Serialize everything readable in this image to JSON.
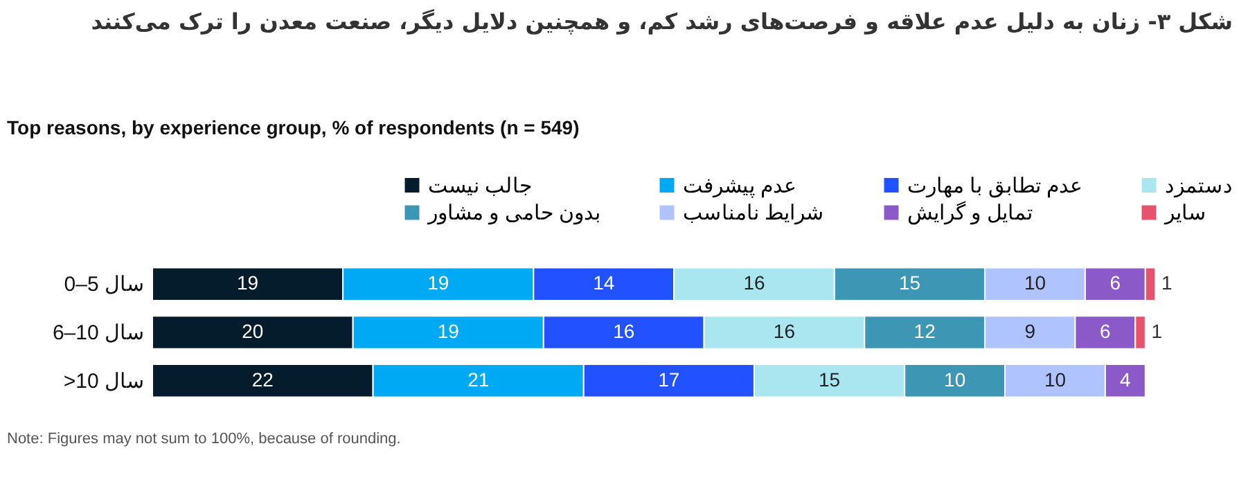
{
  "chart_data": {
    "type": "bar",
    "orientation": "horizontal",
    "stacked": true,
    "data_labels": true,
    "legend": "top",
    "title": "شکل ۳- زنان به دلیل عدم علاقه و فرصت‌های رشد کم، و همچنین دلایل دیگر، صنعت معدن را ترک می‌کنند",
    "subtitle": "Top reasons, by experience group, % of respondents (n = 549)",
    "annotations": [
      "Note: Figures may not sum to 100%, because of rounding."
    ],
    "categories": [
      "0–5 سال",
      "6–10 سال",
      ">10 سال"
    ],
    "series": [
      {
        "name": "جالب نیست",
        "color": "#051c2c",
        "values": [
          19,
          20,
          22
        ]
      },
      {
        "name": "عدم پیشرفت",
        "color": "#00a9f4",
        "values": [
          19,
          19,
          21
        ]
      },
      {
        "name": "عدم تطابق با مهارت",
        "color": "#2251ff",
        "values": [
          14,
          16,
          17
        ]
      },
      {
        "name": "دستمزد",
        "color": "#aae6f0",
        "values": [
          16,
          16,
          15
        ]
      },
      {
        "name": "بدون حامی و مشاور",
        "color": "#3c96b4",
        "values": [
          15,
          12,
          10
        ]
      },
      {
        "name": "شرایط نامناسب",
        "color": "#afc3ff",
        "values": [
          10,
          9,
          10
        ]
      },
      {
        "name": "تمایل و گرایش",
        "color": "#8c5ac8",
        "values": [
          6,
          6,
          4
        ]
      },
      {
        "name": "سایر",
        "color": "#e5546c",
        "values": [
          1,
          1,
          null
        ]
      }
    ]
  }
}
